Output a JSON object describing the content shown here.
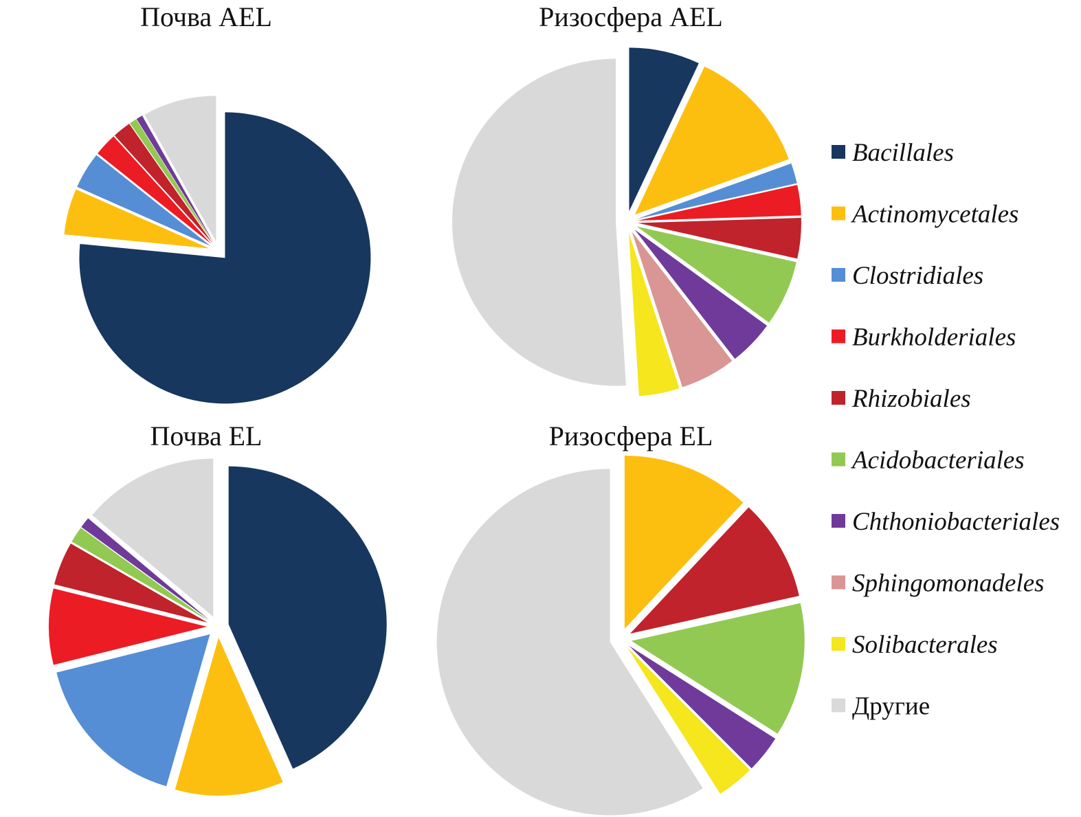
{
  "legend": {
    "items": [
      {
        "key": "bacillales",
        "label": "Bacillales",
        "color": "#17375e",
        "italic": true
      },
      {
        "key": "actinomycetales",
        "label": "Actinomycetales",
        "color": "#fdbf0f",
        "italic": true
      },
      {
        "key": "clostridiales",
        "label": "Clostridiales",
        "color": "#558ed5",
        "italic": true
      },
      {
        "key": "burkholderiales",
        "label": "Burkholderiales",
        "color": "#ec1c24",
        "italic": true
      },
      {
        "key": "rhizobiales",
        "label": "Rhizobiales",
        "color": "#c0232b",
        "italic": true
      },
      {
        "key": "acidobacteriales",
        "label": "Acidobacteriales",
        "color": "#92c952",
        "italic": true
      },
      {
        "key": "chthoniobacteriales",
        "label": "Chthoniobacteriales",
        "color": "#6f3a9a",
        "italic": true
      },
      {
        "key": "sphingomonadeles",
        "label": "Sphingomonadeles",
        "color": "#d99694",
        "italic": true
      },
      {
        "key": "solibacterales",
        "label": "Solibacterales",
        "color": "#f5e61d",
        "italic": true
      },
      {
        "key": "other",
        "label": "Другие",
        "color": "#d9d9d9",
        "italic": false
      }
    ]
  },
  "chart_data": [
    {
      "type": "pie",
      "title": "Почва AEL",
      "exploded": true,
      "slices": [
        {
          "key": "bacillales",
          "value": 75
        },
        {
          "key": "actinomycetales",
          "value": 5
        },
        {
          "key": "clostridiales",
          "value": 4
        },
        {
          "key": "burkholderiales",
          "value": 2.5
        },
        {
          "key": "rhizobiales",
          "value": 2
        },
        {
          "key": "acidobacteriales",
          "value": 0.8
        },
        {
          "key": "chthoniobacteriales",
          "value": 0.7
        },
        {
          "key": "other",
          "value": 8
        }
      ]
    },
    {
      "type": "pie",
      "title": "Ризосфера AEL",
      "exploded": true,
      "slices": [
        {
          "key": "bacillales",
          "value": 7
        },
        {
          "key": "actinomycetales",
          "value": 12.5
        },
        {
          "key": "clostridiales",
          "value": 2
        },
        {
          "key": "burkholderiales",
          "value": 3
        },
        {
          "key": "rhizobiales",
          "value": 4
        },
        {
          "key": "acidobacteriales",
          "value": 6.5
        },
        {
          "key": "chthoniobacteriales",
          "value": 4.5
        },
        {
          "key": "sphingomonadeles",
          "value": 5.5
        },
        {
          "key": "solibacterales",
          "value": 4
        },
        {
          "key": "other",
          "value": 51
        }
      ]
    },
    {
      "type": "pie",
      "title": "Почва EL",
      "exploded": true,
      "slices": [
        {
          "key": "bacillales",
          "value": 39
        },
        {
          "key": "actinomycetales",
          "value": 10
        },
        {
          "key": "clostridiales",
          "value": 15
        },
        {
          "key": "burkholderiales",
          "value": 7
        },
        {
          "key": "rhizobiales",
          "value": 4
        },
        {
          "key": "acidobacteriales",
          "value": 1.5
        },
        {
          "key": "chthoniobacteriales",
          "value": 1
        },
        {
          "key": "other",
          "value": 12.5
        }
      ]
    },
    {
      "type": "pie",
      "title": "Ризосфера EL",
      "exploded": true,
      "slices": [
        {
          "key": "actinomycetales",
          "value": 12
        },
        {
          "key": "rhizobiales",
          "value": 9.5
        },
        {
          "key": "acidobacteriales",
          "value": 12.5
        },
        {
          "key": "chthoniobacteriales",
          "value": 3.5
        },
        {
          "key": "solibacterales",
          "value": 3.5
        },
        {
          "key": "other",
          "value": 59
        }
      ]
    }
  ]
}
